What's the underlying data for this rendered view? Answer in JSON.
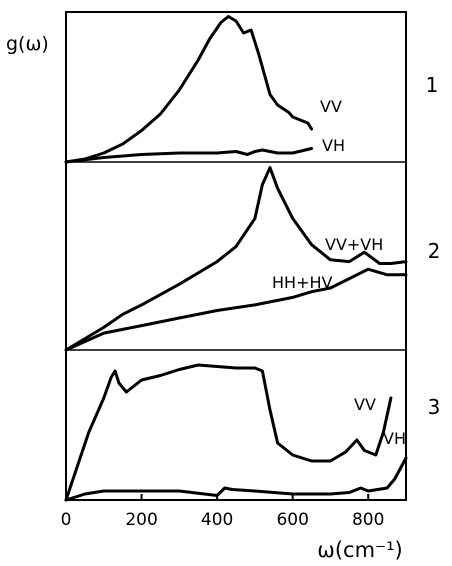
{
  "chart_data": {
    "type": "line",
    "ylabel": "g(ω)",
    "xlabel": "ω(cm⁻¹)",
    "xlim": [
      0,
      900
    ],
    "xticks": [
      0,
      200,
      400,
      600,
      800
    ],
    "xtick_labels": [
      "0",
      "200",
      "400",
      "600",
      "800"
    ],
    "grid": false,
    "panels": [
      {
        "panel_label": "1",
        "ylim": [
          0,
          1
        ],
        "series": [
          {
            "name": "VV",
            "x": [
              0,
              50,
              100,
              150,
              200,
              250,
              300,
              350,
              380,
              410,
              430,
              450,
              470,
              490,
              510,
              540,
              560,
              590,
              600,
              640,
              650
            ],
            "y": [
              0.0,
              0.02,
              0.06,
              0.12,
              0.21,
              0.32,
              0.48,
              0.68,
              0.82,
              0.93,
              0.97,
              0.94,
              0.86,
              0.88,
              0.72,
              0.45,
              0.38,
              0.33,
              0.3,
              0.26,
              0.22
            ]
          },
          {
            "name": "VH",
            "x": [
              0,
              100,
              200,
              300,
              400,
              450,
              480,
              500,
              520,
              560,
              600,
              650
            ],
            "y": [
              0.0,
              0.03,
              0.05,
              0.06,
              0.06,
              0.07,
              0.05,
              0.07,
              0.08,
              0.06,
              0.06,
              0.09
            ]
          }
        ]
      },
      {
        "panel_label": "2",
        "ylim": [
          0,
          1
        ],
        "series": [
          {
            "name": "VV+VH",
            "x": [
              0,
              100,
              150,
              200,
              300,
              400,
              450,
              500,
              520,
              540,
              560,
              600,
              650,
              700,
              750,
              790,
              830,
              860,
              900
            ],
            "y": [
              0.0,
              0.12,
              0.19,
              0.24,
              0.35,
              0.47,
              0.55,
              0.7,
              0.88,
              0.97,
              0.86,
              0.7,
              0.56,
              0.48,
              0.47,
              0.52,
              0.46,
              0.46,
              0.47
            ]
          },
          {
            "name": "HH+HV",
            "x": [
              0,
              100,
              200,
              300,
              400,
              500,
              600,
              650,
              700,
              750,
              800,
              850,
              900
            ],
            "y": [
              0.0,
              0.09,
              0.13,
              0.17,
              0.21,
              0.24,
              0.28,
              0.31,
              0.33,
              0.38,
              0.43,
              0.4,
              0.4
            ]
          }
        ]
      },
      {
        "panel_label": "3",
        "ylim": [
          0,
          1
        ],
        "series": [
          {
            "name": "VV",
            "x": [
              0,
              60,
              100,
              120,
              130,
              140,
              160,
              180,
              200,
              250,
              300,
              350,
              400,
              450,
              500,
              520,
              540,
              560,
              600,
              650,
              700,
              740,
              770,
              790,
              820,
              840,
              860
            ],
            "y": [
              0.0,
              0.45,
              0.68,
              0.82,
              0.86,
              0.78,
              0.72,
              0.76,
              0.8,
              0.83,
              0.87,
              0.9,
              0.89,
              0.88,
              0.88,
              0.86,
              0.6,
              0.38,
              0.3,
              0.26,
              0.26,
              0.32,
              0.4,
              0.33,
              0.3,
              0.45,
              0.68
            ]
          },
          {
            "name": "VH",
            "x": [
              0,
              50,
              100,
              200,
              300,
              400,
              420,
              440,
              500,
              600,
              700,
              750,
              780,
              800,
              850,
              870,
              900
            ],
            "y": [
              0.0,
              0.04,
              0.06,
              0.06,
              0.06,
              0.03,
              0.08,
              0.07,
              0.06,
              0.04,
              0.04,
              0.05,
              0.08,
              0.06,
              0.08,
              0.14,
              0.28
            ]
          }
        ]
      }
    ]
  }
}
